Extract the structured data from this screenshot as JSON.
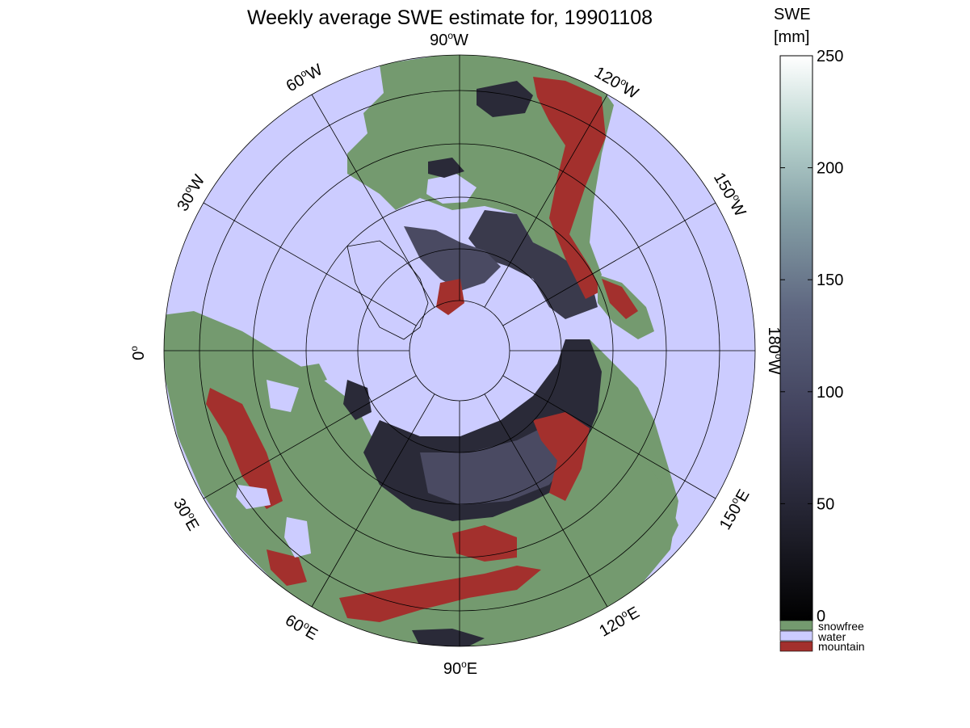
{
  "title": "Weekly average SWE estimate for, 19901108",
  "colorbar": {
    "title_line1": "SWE",
    "title_line2": "[mm]",
    "ticks": [
      "0",
      "50",
      "100",
      "150",
      "200",
      "250"
    ],
    "range": [
      0,
      250
    ],
    "gradient_stops": [
      "#000000",
      "#1d1d28",
      "#3f3f5a",
      "#5e6680",
      "#85a0a6",
      "#b9d4cf",
      "#ffffff"
    ]
  },
  "legend": {
    "items": [
      {
        "label": "snowfree",
        "color": "#749a6f"
      },
      {
        "label": "water",
        "color": "#ccccff"
      },
      {
        "label": "mountain",
        "color": "#a3302d"
      }
    ]
  },
  "map": {
    "projection": "north polar stereographic",
    "longitude_labels": [
      {
        "deg": "90",
        "hemi": "W"
      },
      {
        "deg": "120",
        "hemi": "W"
      },
      {
        "deg": "150",
        "hemi": "W"
      },
      {
        "deg": "180",
        "hemi": "W"
      },
      {
        "deg": "150",
        "hemi": "E"
      },
      {
        "deg": "120",
        "hemi": "E"
      },
      {
        "deg": "90",
        "hemi": "E"
      },
      {
        "deg": "60",
        "hemi": "E"
      },
      {
        "deg": "30",
        "hemi": "E"
      },
      {
        "deg": "0",
        "hemi": ""
      },
      {
        "deg": "30",
        "hemi": "W"
      },
      {
        "deg": "60",
        "hemi": "W"
      }
    ],
    "colors": {
      "water": "#ccccff",
      "snowfree": "#749a6f",
      "mountain": "#a3302d",
      "snow_dark": "#2a2a38",
      "snow_mid": "#4a4a62"
    }
  }
}
